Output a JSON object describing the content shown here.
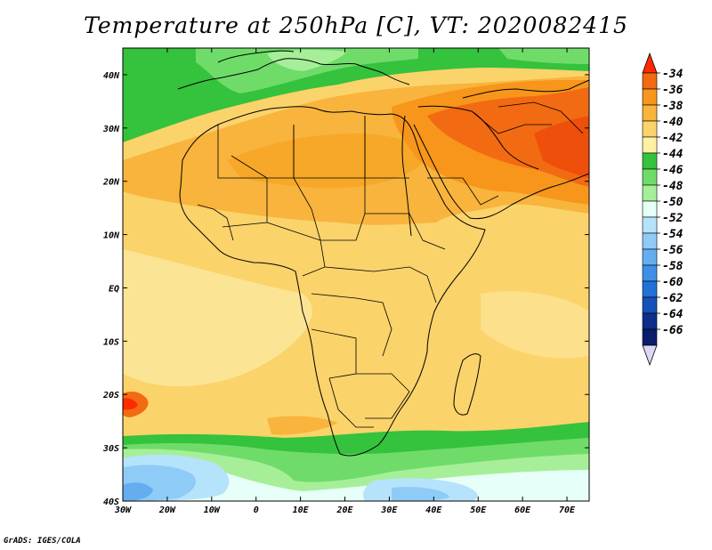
{
  "title": "Temperature at 250hPa [C], VT: 2020082415",
  "credit": "GrADS: IGES/COLA",
  "map": {
    "region": "Africa",
    "lon_range": [
      -30,
      75
    ],
    "lat_range": [
      -40,
      45
    ],
    "lon_ticks": [
      "30W",
      "20W",
      "10W",
      "0",
      "10E",
      "20E",
      "30E",
      "40E",
      "50E",
      "60E",
      "70E"
    ],
    "lat_ticks": [
      "40N",
      "30N",
      "20N",
      "10N",
      "EQ",
      "10S",
      "20S",
      "30S",
      "40S"
    ]
  },
  "colorbar": {
    "labels": [
      "-34",
      "-36",
      "-38",
      "-40",
      "-42",
      "-44",
      "-46",
      "-48",
      "-50",
      "-52",
      "-54",
      "-56",
      "-58",
      "-60",
      "-62",
      "-64",
      "-66"
    ],
    "colors": [
      "#ff2a00",
      "#f26a12",
      "#f7961b",
      "#f8b43d",
      "#fbd36b",
      "#fdf2a4",
      "#35c23d",
      "#6fdc6a",
      "#a6ef98",
      "#e6fff8",
      "#b5e3fb",
      "#8fcbf7",
      "#64aef0",
      "#3e90e6",
      "#2271d8",
      "#1451b8",
      "#0c2f8a",
      "#0a1e6a",
      "#dcd7f6"
    ]
  }
}
